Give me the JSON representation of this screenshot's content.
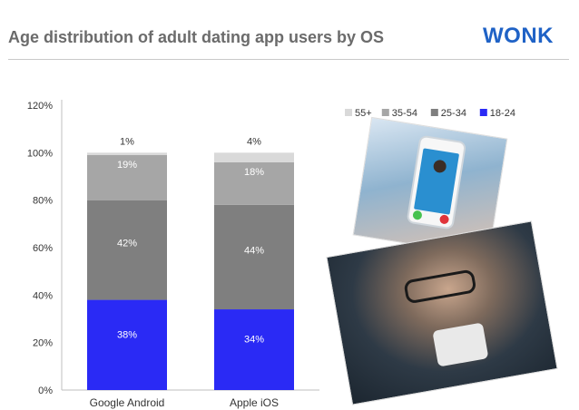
{
  "header": {
    "title": "Age distribution of adult dating app users by OS",
    "logo": "WONK"
  },
  "chart_data": {
    "type": "bar",
    "stacked": true,
    "categories": [
      "Google Android",
      "Apple iOS"
    ],
    "series": [
      {
        "name": "18-24",
        "values": [
          38,
          34
        ],
        "color": "#2a2af5"
      },
      {
        "name": "25-34",
        "values": [
          42,
          44
        ],
        "color": "#7f7f7f"
      },
      {
        "name": "35-54",
        "values": [
          19,
          18
        ],
        "color": "#a6a6a6"
      },
      {
        "name": "55+",
        "values": [
          1,
          4
        ],
        "color": "#d9d9d9"
      }
    ],
    "data_labels": [
      [
        "38%",
        "42%",
        "19%",
        "1%"
      ],
      [
        "34%",
        "44%",
        "18%",
        "4%"
      ]
    ],
    "y_ticks": [
      "0%",
      "20%",
      "40%",
      "60%",
      "80%",
      "100%",
      "120%"
    ],
    "ylim": [
      0,
      120
    ],
    "legend_order": [
      "55+",
      "35-54",
      "25-34",
      "18-24"
    ],
    "legend_position": "top-right",
    "grid": false,
    "title": "",
    "xlabel": "",
    "ylabel": ""
  },
  "images": {
    "photo1": "phone-dating-app-photo",
    "photo2": "woman-with-phone-photo"
  }
}
